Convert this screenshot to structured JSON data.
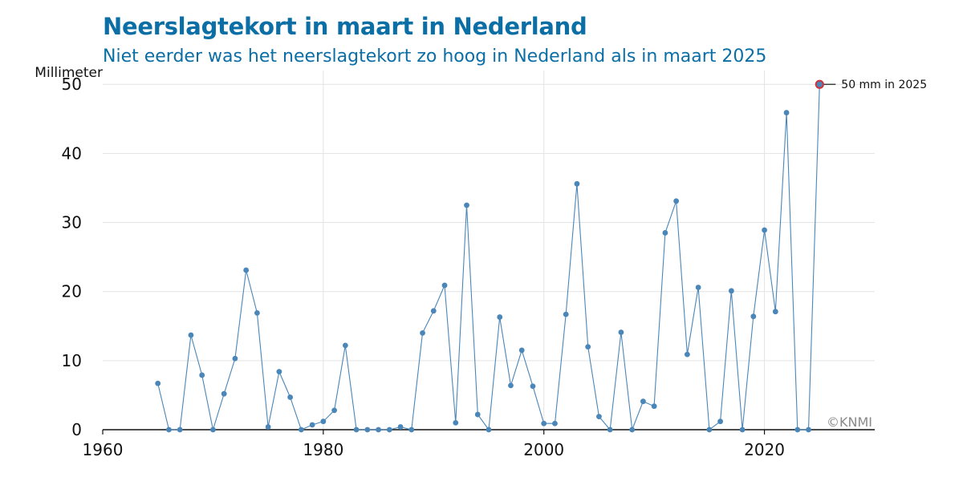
{
  "chart_data": {
    "type": "line",
    "title": "Neerslagtekort in maart in Nederland",
    "subtitle": "Niet eerder was het neerslagtekort zo hoog in Nederland als in maart 2025",
    "ylabel": "Millimeter",
    "xlabel": "",
    "xlim": [
      1960,
      2030
    ],
    "ylim": [
      0,
      52
    ],
    "xticks": [
      1960,
      1980,
      2000,
      2020
    ],
    "yticks": [
      0,
      10,
      20,
      30,
      40,
      50
    ],
    "grid": true,
    "series": [
      {
        "color": "#4a86b8",
        "x": [
          1965,
          1966,
          1967,
          1968,
          1969,
          1970,
          1971,
          1972,
          1973,
          1974,
          1975,
          1976,
          1977,
          1978,
          1979,
          1980,
          1981,
          1982,
          1983,
          1984,
          1985,
          1986,
          1987,
          1988,
          1989,
          1990,
          1991,
          1992,
          1993,
          1994,
          1995,
          1996,
          1997,
          1998,
          1999,
          2000,
          2001,
          2002,
          2003,
          2004,
          2005,
          2006,
          2007,
          2008,
          2009,
          2010,
          2011,
          2012,
          2013,
          2014,
          2015,
          2016,
          2017,
          2018,
          2019,
          2020,
          2021,
          2022,
          2023,
          2024,
          2025
        ],
        "y": [
          6.7,
          0,
          0,
          13.7,
          7.9,
          0,
          5.2,
          10.3,
          23.1,
          16.9,
          0.4,
          8.4,
          4.7,
          0,
          0.7,
          1.2,
          2.8,
          12.2,
          0,
          0,
          0,
          0,
          0.4,
          0,
          14.0,
          17.2,
          20.9,
          1.0,
          32.5,
          2.2,
          0,
          16.3,
          6.4,
          11.5,
          6.3,
          0.9,
          0.9,
          16.7,
          35.6,
          12.0,
          1.9,
          0,
          14.1,
          0,
          4.1,
          3.4,
          28.5,
          33.1,
          10.9,
          20.6,
          0,
          1.2,
          20.1,
          0,
          16.4,
          28.9,
          17.1,
          45.9,
          0,
          0,
          50.0
        ]
      }
    ],
    "highlight": {
      "x": 2025,
      "y": 50.0,
      "label": "50 mm in 2025",
      "color": "#d0323a"
    },
    "credit": "©KNMI"
  }
}
